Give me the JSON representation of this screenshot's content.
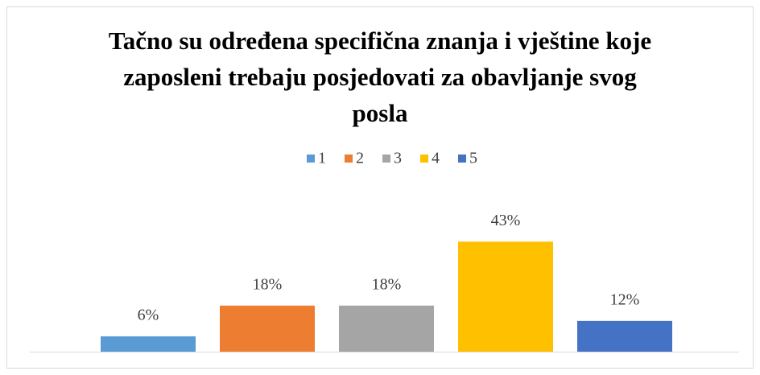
{
  "chart_data": {
    "type": "bar",
    "title": "Tačno su određena specifična znanja i vještine koje zaposleni trebaju posjedovati za obavljanje svog posla",
    "categories": [
      null
    ],
    "series": [
      {
        "name": "1",
        "color": "#5b9bd5",
        "values": [
          6
        ],
        "value_labels": [
          "6%"
        ]
      },
      {
        "name": "2",
        "color": "#ed7d31",
        "values": [
          18
        ],
        "value_labels": [
          "18%"
        ]
      },
      {
        "name": "3",
        "color": "#a5a5a5",
        "values": [
          18
        ],
        "value_labels": [
          "18%"
        ]
      },
      {
        "name": "4",
        "color": "#ffc000",
        "values": [
          43
        ],
        "value_labels": [
          "43%"
        ]
      },
      {
        "name": "5",
        "color": "#4472c4",
        "values": [
          12
        ],
        "value_labels": [
          "12%"
        ]
      }
    ],
    "legend": "top"
  }
}
